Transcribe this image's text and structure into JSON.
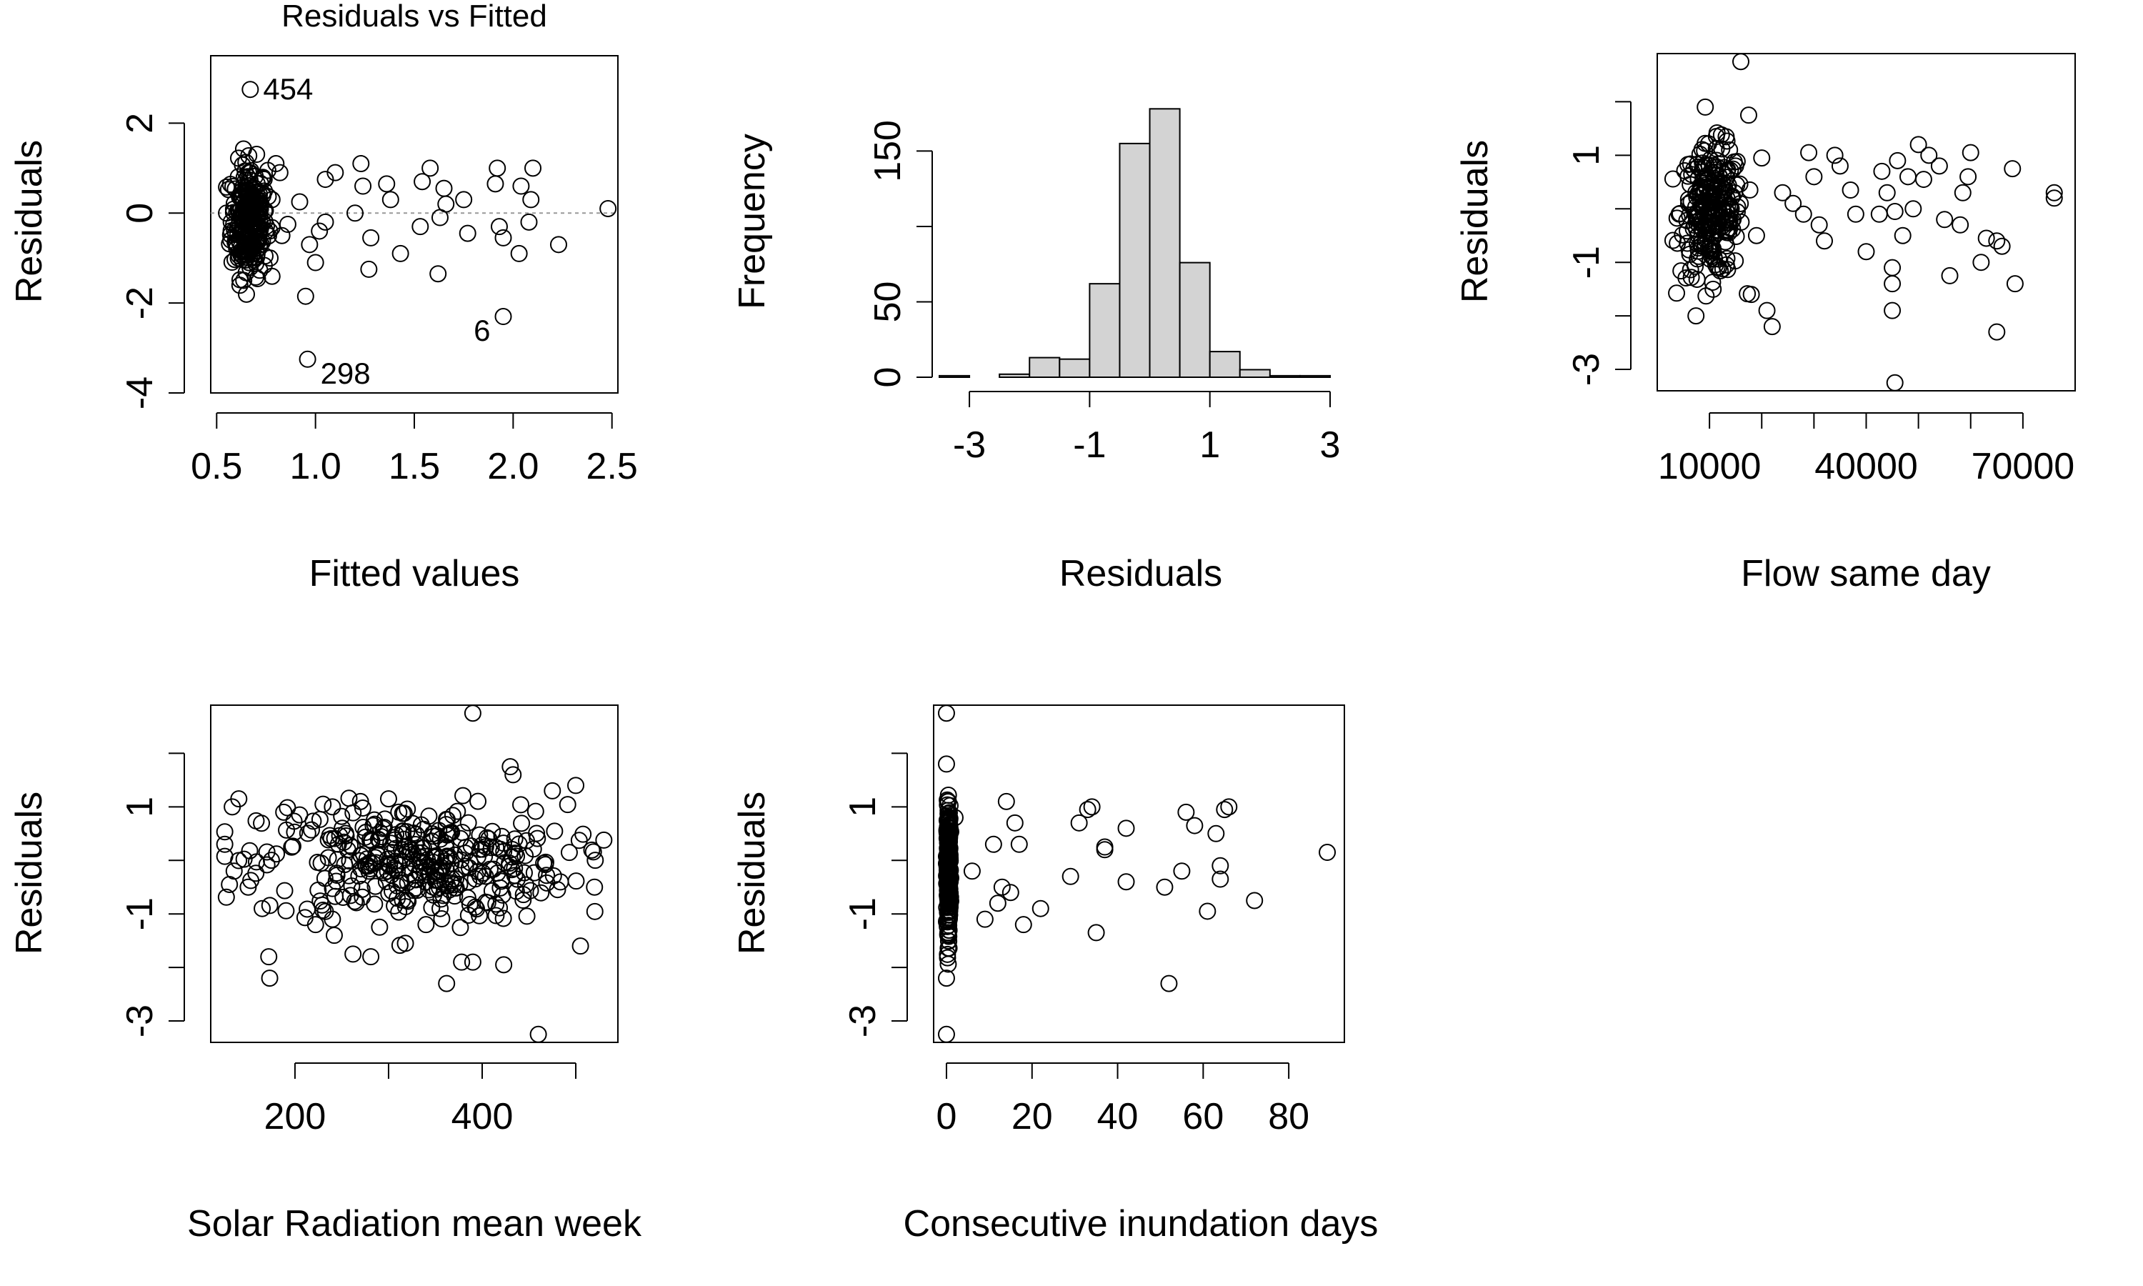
{
  "chart_data": [
    {
      "type": "scatter",
      "title": "Residuals vs Fitted",
      "xlabel": "Fitted values",
      "ylabel": "Residuals",
      "xlim": [
        0.47,
        2.53
      ],
      "ylim": [
        -4.0,
        3.5
      ],
      "xticks": [
        0.5,
        1.0,
        1.5,
        2.0,
        2.5
      ],
      "xtick_labels": [
        "0.5",
        "1.0",
        "1.5",
        "2.0",
        "2.5"
      ],
      "yticks": [
        -4,
        -2,
        0,
        2
      ],
      "ytick_labels": [
        "-4",
        "-2",
        "0",
        "2"
      ],
      "reference_line": 0,
      "annotations": [
        {
          "label": "454",
          "x": 0.67,
          "y": 2.75
        },
        {
          "label": "298",
          "x": 0.96,
          "y": -3.25
        },
        {
          "label": "6",
          "x": 1.95,
          "y": -2.3
        }
      ],
      "points": [
        [
          0.67,
          2.75
        ],
        [
          0.96,
          -3.25
        ],
        [
          1.95,
          -2.3
        ],
        [
          2.48,
          0.1
        ],
        [
          2.23,
          -0.7
        ],
        [
          2.1,
          1.0
        ],
        [
          2.09,
          0.3
        ],
        [
          2.08,
          -0.2
        ],
        [
          2.03,
          -0.9
        ],
        [
          2.04,
          0.6
        ],
        [
          1.92,
          1.0
        ],
        [
          1.91,
          0.65
        ],
        [
          1.93,
          -0.3
        ],
        [
          1.95,
          -0.55
        ],
        [
          1.75,
          0.3
        ],
        [
          1.77,
          -0.45
        ],
        [
          1.65,
          0.55
        ],
        [
          1.66,
          0.2
        ],
        [
          1.63,
          -0.1
        ],
        [
          1.62,
          -1.35
        ],
        [
          1.58,
          1.0
        ],
        [
          1.54,
          0.7
        ],
        [
          1.53,
          -0.3
        ],
        [
          1.43,
          -0.9
        ],
        [
          1.38,
          0.3
        ],
        [
          1.36,
          0.65
        ],
        [
          1.28,
          -0.55
        ],
        [
          1.27,
          -1.25
        ],
        [
          1.24,
          0.6
        ],
        [
          1.23,
          1.1
        ],
        [
          1.2,
          0.0
        ],
        [
          1.1,
          0.9
        ],
        [
          1.05,
          0.75
        ],
        [
          1.05,
          -0.2
        ],
        [
          1.02,
          -0.4
        ],
        [
          1.0,
          -1.1
        ],
        [
          0.97,
          -0.7
        ],
        [
          0.95,
          -1.85
        ],
        [
          0.92,
          0.25
        ],
        [
          0.86,
          -0.25
        ],
        [
          0.83,
          -0.5
        ],
        [
          0.82,
          0.9
        ],
        [
          0.8,
          1.1
        ],
        [
          0.78,
          0.3
        ],
        [
          0.77,
          -1.0
        ]
      ],
      "dense_cluster": {
        "x_range": [
          0.55,
          0.78
        ],
        "y_range": [
          -2.2,
          1.9
        ],
        "count": 260
      }
    },
    {
      "type": "bar",
      "subtype": "histogram",
      "title": "",
      "xlabel": "Residuals",
      "ylabel": "Frequency",
      "bin_edges": [
        -3.5,
        -3.0,
        -2.5,
        -2.0,
        -1.5,
        -1.0,
        -0.5,
        0.0,
        0.5,
        1.0,
        1.5,
        2.0,
        2.5,
        3.0
      ],
      "values": [
        1,
        0,
        2,
        13,
        12,
        62,
        155,
        178,
        76,
        17,
        5,
        1,
        1
      ],
      "xlim": [
        -3.5,
        3.0
      ],
      "ylim": [
        0,
        190
      ],
      "xticks": [
        -3,
        -1,
        1,
        3
      ],
      "xtick_labels": [
        "-3",
        "-1",
        "1",
        "3"
      ],
      "yticks": [
        0,
        50,
        150
      ],
      "ytick_labels": [
        "0",
        "50",
        "150"
      ]
    },
    {
      "type": "scatter",
      "title": "",
      "xlabel": "Flow same day",
      "ylabel": "Residuals",
      "xlim": [
        0,
        80000
      ],
      "ylim": [
        -3.4,
        2.9
      ],
      "xticks": [
        10000,
        20000,
        30000,
        40000,
        50000,
        60000,
        70000
      ],
      "xtick_labels": [
        "10000",
        "40000",
        "70000"
      ],
      "yticks": [
        -3,
        -2,
        -1,
        0,
        1,
        2
      ],
      "ytick_labels": [
        "-3",
        "-1",
        "1"
      ],
      "points": [
        [
          16000,
          2.75
        ],
        [
          45500,
          -3.25
        ],
        [
          65000,
          -2.3
        ],
        [
          68500,
          -1.4
        ],
        [
          76000,
          0.3
        ],
        [
          76000,
          0.2
        ],
        [
          68000,
          0.75
        ],
        [
          66000,
          -0.7
        ],
        [
          65000,
          -0.6
        ],
        [
          63000,
          -0.55
        ],
        [
          62000,
          -1.0
        ],
        [
          60000,
          1.05
        ],
        [
          59500,
          0.6
        ],
        [
          58500,
          0.3
        ],
        [
          58000,
          -0.3
        ],
        [
          56000,
          -1.25
        ],
        [
          55000,
          -0.2
        ],
        [
          54000,
          0.8
        ],
        [
          52000,
          1.0
        ],
        [
          51000,
          0.55
        ],
        [
          50000,
          1.2
        ],
        [
          49000,
          0.0
        ],
        [
          48000,
          0.6
        ],
        [
          47000,
          -0.5
        ],
        [
          46000,
          0.9
        ],
        [
          45500,
          -0.05
        ],
        [
          45000,
          -1.1
        ],
        [
          45000,
          -1.9
        ],
        [
          45000,
          -1.4
        ],
        [
          44000,
          0.3
        ],
        [
          43000,
          0.7
        ],
        [
          42500,
          -0.1
        ],
        [
          40000,
          -0.8
        ],
        [
          38000,
          -0.1
        ],
        [
          37000,
          0.35
        ],
        [
          35000,
          0.8
        ],
        [
          34000,
          1.0
        ],
        [
          32000,
          -0.6
        ],
        [
          31000,
          -0.3
        ],
        [
          30000,
          0.6
        ],
        [
          29000,
          1.05
        ],
        [
          28000,
          -0.1
        ],
        [
          26000,
          0.1
        ],
        [
          24000,
          0.3
        ],
        [
          22000,
          -2.2
        ],
        [
          21000,
          -1.9
        ],
        [
          20000,
          0.95
        ],
        [
          19000,
          -0.5
        ],
        [
          18000,
          -1.6
        ],
        [
          17500,
          1.75
        ]
      ],
      "dense_cluster": {
        "x_range": [
          3000,
          18000
        ],
        "y_range": [
          -2.0,
          1.9
        ],
        "count": 260
      }
    },
    {
      "type": "scatter",
      "title": "",
      "xlabel": "Solar Radiation mean week",
      "ylabel": "Residuals",
      "xlim": [
        110,
        545
      ],
      "ylim": [
        -3.4,
        2.9
      ],
      "xticks": [
        200,
        300,
        400,
        500
      ],
      "xtick_labels": [
        "200",
        "400"
      ],
      "yticks": [
        -3,
        -2,
        -1,
        0,
        1,
        2
      ],
      "ytick_labels": [
        "-3",
        "-1",
        "1"
      ],
      "points": [
        [
          390,
          2.75
        ],
        [
          460,
          -3.25
        ],
        [
          172,
          -1.8
        ],
        [
          173,
          -2.2
        ],
        [
          222,
          -1.2
        ],
        [
          240,
          -1.1
        ],
        [
          242,
          -1.4
        ],
        [
          262,
          -1.75
        ],
        [
          318,
          -1.55
        ],
        [
          362,
          -2.3
        ],
        [
          378,
          -1.9
        ],
        [
          390,
          -1.9
        ],
        [
          423,
          -1.95
        ],
        [
          430,
          1.75
        ],
        [
          433,
          1.6
        ],
        [
          475,
          1.3
        ],
        [
          500,
          1.4
        ],
        [
          140,
          1.15
        ],
        [
          133,
          1.0
        ],
        [
          188,
          0.9
        ],
        [
          205,
          0.85
        ],
        [
          230,
          1.05
        ],
        [
          240,
          1.0
        ],
        [
          270,
          1.1
        ],
        [
          300,
          1.15
        ],
        [
          315,
          0.55
        ],
        [
          340,
          -1.2
        ],
        [
          355,
          -0.9
        ],
        [
          505,
          -1.6
        ],
        [
          520,
          -0.5
        ],
        [
          125,
          0.3
        ],
        [
          130,
          -0.45
        ],
        [
          135,
          -0.2
        ],
        [
          150,
          -0.5
        ],
        [
          165,
          -0.9
        ]
      ],
      "dense_cluster": {
        "x_range": [
          125,
          530
        ],
        "y_range": [
          -1.8,
          1.7
        ],
        "count": 360
      }
    },
    {
      "type": "scatter",
      "title": "",
      "xlabel": "Consecutive inundation days",
      "ylabel": "Residuals",
      "xlim": [
        -3,
        93
      ],
      "ylim": [
        -3.4,
        2.9
      ],
      "xticks": [
        0,
        20,
        40,
        60,
        80
      ],
      "xtick_labels": [
        "0",
        "20",
        "40",
        "60",
        "80"
      ],
      "yticks": [
        -3,
        -2,
        -1,
        0,
        1,
        2
      ],
      "ytick_labels": [
        "-3",
        "-1",
        "1"
      ],
      "points": [
        [
          0,
          2.75
        ],
        [
          0,
          -3.25
        ],
        [
          0,
          1.8
        ],
        [
          0,
          -2.2
        ],
        [
          89,
          0.15
        ],
        [
          72,
          -0.75
        ],
        [
          66,
          1.0
        ],
        [
          65,
          0.95
        ],
        [
          64,
          -0.1
        ],
        [
          64,
          -0.35
        ],
        [
          63,
          0.5
        ],
        [
          61,
          -0.95
        ],
        [
          58,
          0.65
        ],
        [
          56,
          0.9
        ],
        [
          55,
          -0.2
        ],
        [
          52,
          -2.3
        ],
        [
          51,
          -0.5
        ],
        [
          42,
          0.6
        ],
        [
          42,
          -0.4
        ],
        [
          37,
          0.25
        ],
        [
          37,
          0.2
        ],
        [
          35,
          -1.35
        ],
        [
          34,
          1.0
        ],
        [
          33,
          0.95
        ],
        [
          31,
          0.7
        ],
        [
          29,
          -0.3
        ],
        [
          22,
          -0.9
        ],
        [
          18,
          -1.2
        ],
        [
          17,
          0.3
        ],
        [
          16,
          0.7
        ],
        [
          15,
          -0.6
        ],
        [
          14,
          1.1
        ],
        [
          13,
          -0.5
        ],
        [
          12,
          -0.8
        ],
        [
          11,
          0.3
        ],
        [
          9,
          -1.1
        ],
        [
          6,
          -0.2
        ],
        [
          2,
          0.8
        ]
      ],
      "dense_cluster": {
        "x_range": [
          0,
          1
        ],
        "y_range": [
          -2.0,
          1.7
        ],
        "count": 300
      }
    }
  ]
}
